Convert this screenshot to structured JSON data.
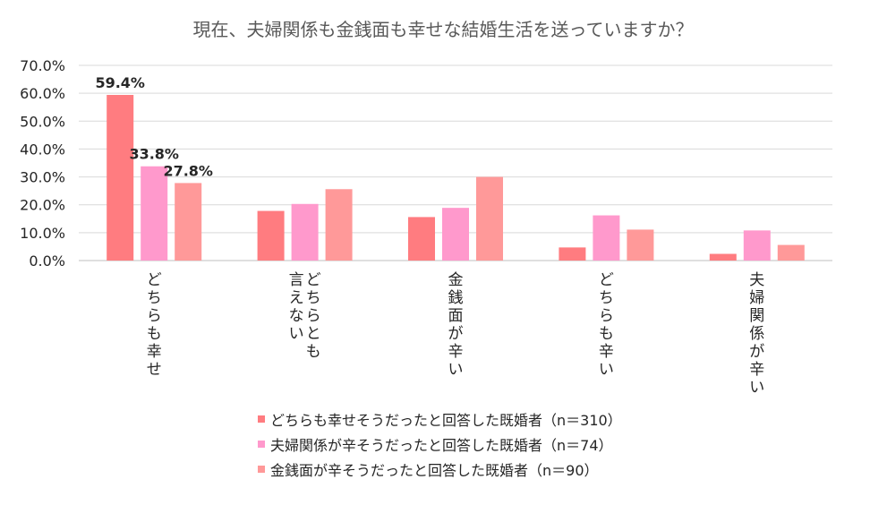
{
  "chart_data": {
    "type": "bar",
    "title": "現在、夫婦関係も金銭面も幸せな結婚生活を送っていますか？",
    "categories": [
      [
        "どちらも幸せ"
      ],
      [
        "どちらとも",
        "言えない"
      ],
      [
        "金銭面が辛い"
      ],
      [
        "どちらも辛い"
      ],
      [
        "夫婦関係が辛い"
      ]
    ],
    "series": [
      {
        "name": "どちらも幸せそうだったと回答した既婚者（n＝310）",
        "color": "#FF7C80",
        "values": [
          59.4,
          17.8,
          15.6,
          4.7,
          2.4
        ],
        "labels": [
          "59.4%",
          "",
          "",
          "",
          ""
        ]
      },
      {
        "name": "夫婦関係が辛そうだったと回答した既婚者（n＝74）",
        "color": "#FF99CC",
        "values": [
          33.8,
          20.3,
          18.9,
          16.2,
          10.8
        ],
        "labels": [
          "33.8%",
          "",
          "",
          "",
          ""
        ]
      },
      {
        "name": "金銭面が辛そうだったと回答した既婚者（n＝90）",
        "color": "#FF9999",
        "values": [
          27.8,
          25.6,
          30.0,
          11.1,
          5.6
        ],
        "labels": [
          "27.8%",
          "",
          "",
          "",
          ""
        ]
      }
    ],
    "yticks": [
      "0.0%",
      "10.0%",
      "20.0%",
      "30.0%",
      "40.0%",
      "50.0%",
      "60.0%",
      "70.0%"
    ],
    "ylim": [
      0,
      70
    ],
    "grid": true,
    "legend_position": "bottom"
  }
}
